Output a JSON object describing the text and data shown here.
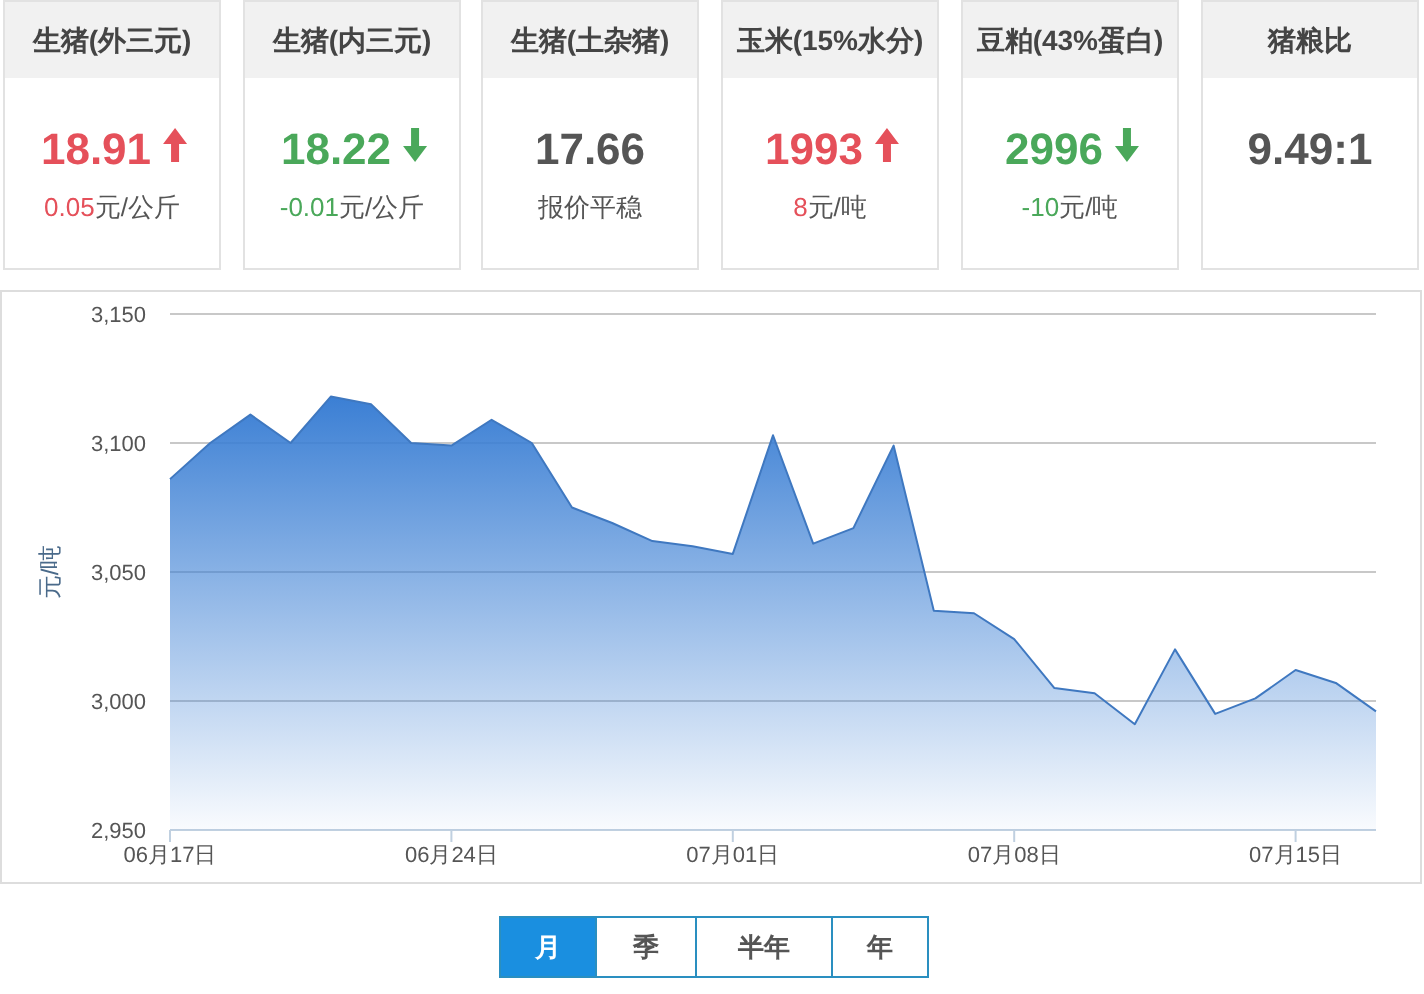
{
  "chart_data": [
    {
      "type": "other",
      "categories": [
        "生猪(外三元)",
        "生猪(内三元)",
        "生猪(土杂猪)",
        "玉米(15%水分)",
        "豆粕(43%蛋白)",
        "猪粮比"
      ],
      "annotations": [
        "18.91",
        "0.05元/公斤",
        "18.22",
        "-0.01元/公斤",
        "17.66",
        "报价平稳",
        "1993",
        "8元/吨",
        "2996",
        "-10元/吨",
        "9.49:1"
      ]
    },
    {
      "type": "area",
      "color": "#3b7fd4",
      "ylabel": "元/吨",
      "x": [
        "--06-17",
        "--06-18",
        "--06-19",
        "--06-20",
        "--06-21",
        "--06-22",
        "--06-23",
        "--06-24",
        "--06-25",
        "--06-26",
        "--06-27",
        "--06-28",
        "--06-29",
        "--06-30",
        "--07-01",
        "--07-02",
        "--07-03",
        "--07-04",
        "--07-05",
        "--07-06",
        "--07-07",
        "--07-08",
        "--07-09",
        "--07-10",
        "--07-11",
        "--07-12",
        "--07-13",
        "--07-14",
        "--07-15",
        "--07-16",
        "--07-17"
      ],
      "values": [
        3086,
        3100,
        3111,
        3100,
        3118,
        3115,
        3100,
        3099,
        3109,
        3100,
        3075,
        3069,
        3062,
        3060,
        3057,
        3103,
        3061,
        3067,
        3099,
        3035,
        3034,
        3024,
        3005,
        3003,
        2991,
        3020,
        2995,
        3001,
        3012,
        3007,
        2996
      ],
      "xlim": [
        "--06-17",
        "--07-17"
      ],
      "xticks": [
        {
          "value": "--06-17",
          "label": "06月17日"
        },
        {
          "value": "--06-24",
          "label": "06月24日"
        },
        {
          "value": "--07-01",
          "label": "07月01日"
        },
        {
          "value": "--07-08",
          "label": "07月08日"
        },
        {
          "value": "--07-15",
          "label": "07月15日"
        }
      ],
      "ylim": [
        2950,
        3150
      ],
      "yticks": [
        {
          "value": 2950,
          "label": "2,950"
        },
        {
          "value": 3000,
          "label": "3,000"
        },
        {
          "value": 3050,
          "label": "3,050"
        },
        {
          "value": 3100,
          "label": "3,100"
        },
        {
          "value": 3150,
          "label": "3,150"
        }
      ],
      "grid": "y",
      "annotations": [
        "月",
        "季",
        "半年",
        "年"
      ]
    }
  ]
}
